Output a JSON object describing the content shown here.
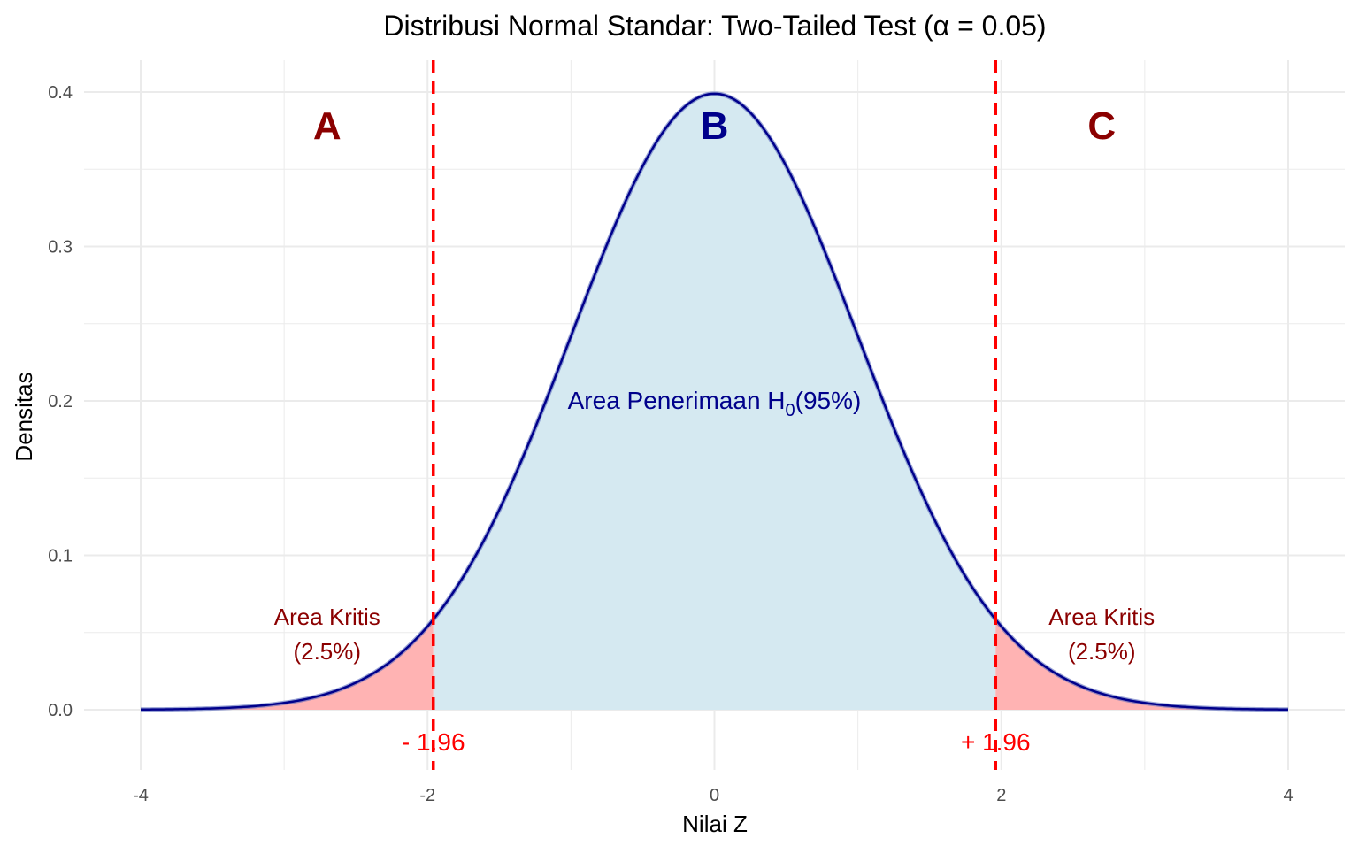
{
  "chart_data": {
    "type": "area",
    "title": "Distribusi Normal Standar: Two-Tailed Test (α = 0.05)",
    "xlabel": "Nilai Z",
    "ylabel": "Densitas",
    "xlim": [
      -4,
      4
    ],
    "ylim": [
      0,
      0.4
    ],
    "x_ticks": [
      "-4",
      "-2",
      "0",
      "2",
      "4"
    ],
    "x_tick_values": [
      -4,
      -2,
      0,
      2,
      4
    ],
    "y_ticks": [
      "0.0",
      "0.1",
      "0.2",
      "0.3",
      "0.4"
    ],
    "y_tick_values": [
      0,
      0.1,
      0.2,
      0.3,
      0.4
    ],
    "grid": true,
    "curve": {
      "distribution": "standard normal",
      "mean": 0,
      "sd": 1,
      "color": "#00008B"
    },
    "critical_values": [
      -1.96,
      1.96
    ],
    "critical_line_color": "#FF0000",
    "regions": [
      {
        "letter": "A",
        "from": -4,
        "to": -1.96,
        "label_line1": "Area Kritis",
        "label_line2": "(2.5%)",
        "fill": "#FFB3B3",
        "text_color": "#8B0000"
      },
      {
        "letter": "B",
        "from": -1.96,
        "to": 1.96,
        "label_main": "Area Penerimaan H",
        "label_sub": "0",
        "label_tail": "(95%)",
        "fill": "#D5E9F1",
        "text_color": "#00008B"
      },
      {
        "letter": "C",
        "from": 1.96,
        "to": 4,
        "label_line1": "Area Kritis",
        "label_line2": "(2.5%)",
        "fill": "#FFB3B3",
        "text_color": "#8B0000"
      }
    ],
    "critical_labels": [
      "- 1.96",
      "+ 1.96"
    ]
  }
}
